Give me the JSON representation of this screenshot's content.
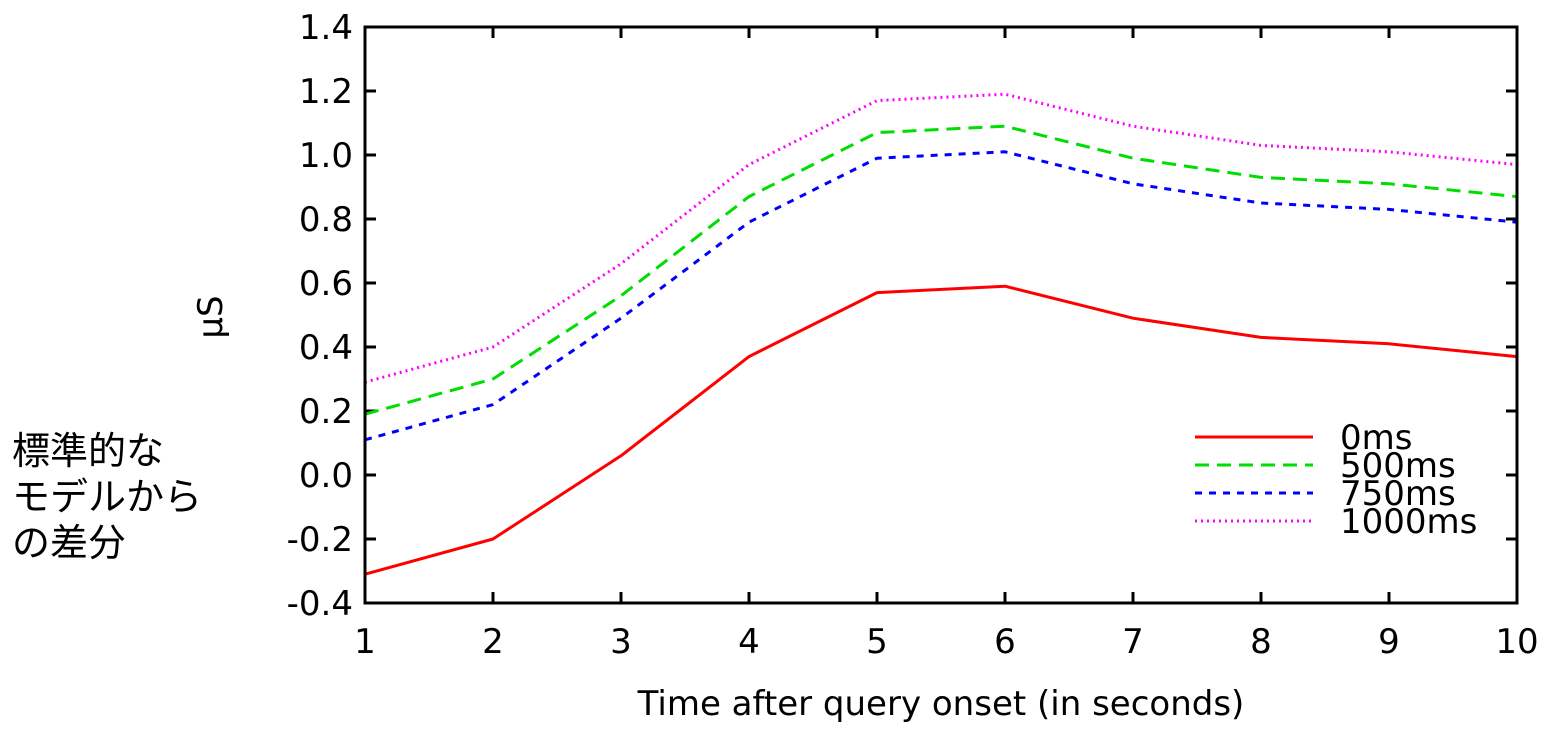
{
  "side_note": {
    "lines": [
      "標準的な",
      "モデルから",
      "の差分"
    ]
  },
  "chart_data": {
    "type": "line",
    "title": "",
    "xlabel": "Time after query onset (in seconds)",
    "ylabel": "µS",
    "xlim": [
      1,
      10
    ],
    "ylim": [
      -0.4,
      1.4
    ],
    "x": [
      1,
      2,
      3,
      4,
      5,
      6,
      7,
      8,
      9,
      10
    ],
    "x_ticks": [
      "1",
      "2",
      "3",
      "4",
      "5",
      "6",
      "7",
      "8",
      "9",
      "10"
    ],
    "y_ticks": [
      "-0.4",
      "-0.2",
      "0.0",
      "0.2",
      "0.4",
      "0.6",
      "0.8",
      "1.0",
      "1.2",
      "1.4"
    ],
    "y_tick_values": [
      -0.4,
      -0.2,
      0.0,
      0.2,
      0.4,
      0.6,
      0.8,
      1.0,
      1.2,
      1.4
    ],
    "legend_position": "bottom-right",
    "grid": false,
    "series": [
      {
        "name": "0ms",
        "color": "#ff0000",
        "style": "solid",
        "values": [
          -0.31,
          -0.2,
          0.06,
          0.37,
          0.57,
          0.59,
          0.49,
          0.43,
          0.41,
          0.37
        ]
      },
      {
        "name": "500ms",
        "color": "#00dd00",
        "style": "dashed",
        "values": [
          0.19,
          0.3,
          0.56,
          0.87,
          1.07,
          1.09,
          0.99,
          0.93,
          0.91,
          0.87
        ]
      },
      {
        "name": "750ms",
        "color": "#0000ff",
        "style": "short-dashed",
        "values": [
          0.11,
          0.22,
          0.49,
          0.79,
          0.99,
          1.01,
          0.91,
          0.85,
          0.83,
          0.79
        ]
      },
      {
        "name": "1000ms",
        "color": "#ff00ff",
        "style": "dotted",
        "values": [
          0.29,
          0.4,
          0.66,
          0.97,
          1.17,
          1.19,
          1.09,
          1.03,
          1.01,
          0.97
        ]
      }
    ]
  }
}
